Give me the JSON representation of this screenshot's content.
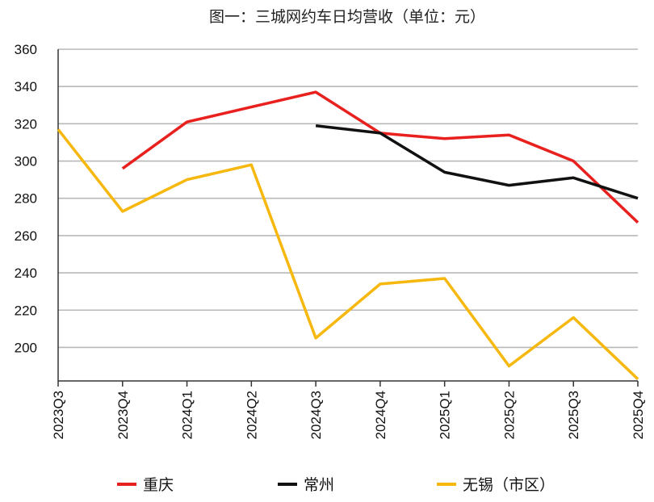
{
  "chart_data": {
    "type": "line",
    "title": "图一：三城网约车日均营收（单位：元）",
    "xlabel": "",
    "ylabel": "",
    "categories": [
      "2023Q3",
      "2023Q4",
      "2024Q1",
      "2024Q2",
      "2024Q3",
      "2024Q4",
      "2025Q1",
      "2025Q2",
      "2025Q3",
      "2025Q4"
    ],
    "ylim": [
      182,
      360
    ],
    "yticks": [
      360,
      340,
      320,
      300,
      280,
      260,
      240,
      220,
      200
    ],
    "grid": true,
    "legend_position": "bottom",
    "series": [
      {
        "name": "重庆",
        "color": "#e8201e",
        "values": [
          null,
          296,
          321,
          329,
          337,
          315,
          312,
          314,
          300,
          267
        ]
      },
      {
        "name": "常州",
        "color": "#111111",
        "values": [
          null,
          null,
          null,
          null,
          319,
          315,
          294,
          287,
          291,
          280
        ]
      },
      {
        "name": "无锡（市区）",
        "color": "#f6b80f",
        "values": [
          317,
          273,
          290,
          298,
          205,
          234,
          237,
          190,
          216,
          183
        ]
      }
    ]
  }
}
